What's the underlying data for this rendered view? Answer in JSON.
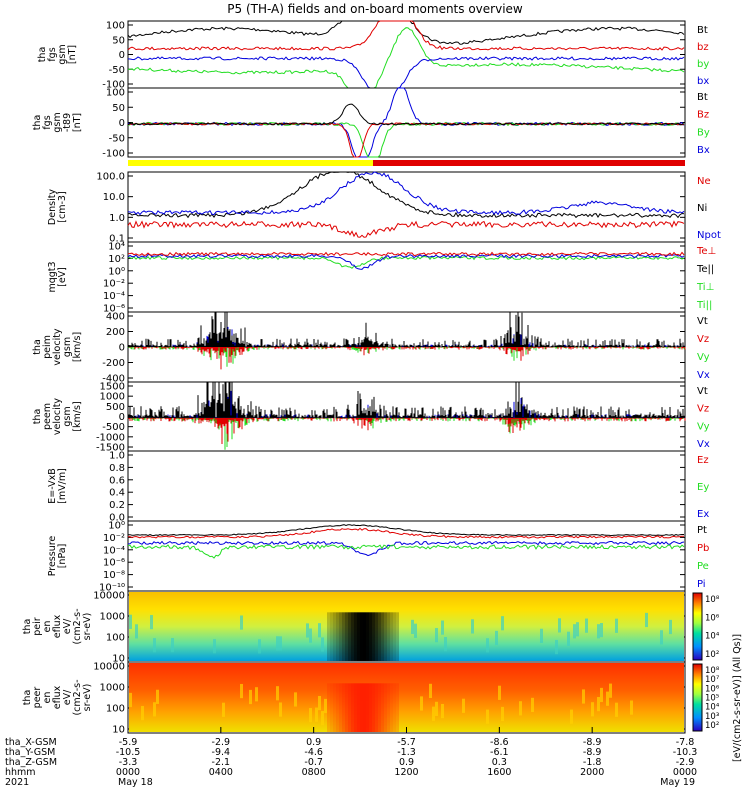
{
  "title": "P5 (TH-A) fields and on-board moments overview",
  "colors": {
    "black": "#000000",
    "red": "#e00000",
    "green": "#22dd22",
    "blue": "#0000dd",
    "yellow": "#ffff00"
  },
  "chart_data": [
    {
      "type": "line",
      "id": "fgs",
      "ylabel_lines": [
        "tha",
        "fgs",
        "gsm",
        "[nT]"
      ],
      "yticks": [
        "100",
        "50",
        "0",
        "-50",
        "-100"
      ],
      "ylim": [
        -100,
        100
      ],
      "series": [
        {
          "name": "Bt",
          "color": "black"
        },
        {
          "name": "bz",
          "color": "red"
        },
        {
          "name": "by",
          "color": "green"
        },
        {
          "name": "bx",
          "color": "blue"
        }
      ]
    },
    {
      "type": "line",
      "id": "fgs-t89",
      "ylabel_lines": [
        "tha",
        "fgs",
        "gsm",
        "-t89",
        "[nT]"
      ],
      "yticks": [
        "100",
        "50",
        "0",
        "-50",
        "-100"
      ],
      "ylim": [
        -125,
        100
      ],
      "series": [
        {
          "name": "Bt",
          "color": "black"
        },
        {
          "name": "Bz",
          "color": "red"
        },
        {
          "name": "By",
          "color": "green"
        },
        {
          "name": "Bx",
          "color": "blue"
        }
      ]
    },
    {
      "type": "line",
      "id": "density",
      "ylabel_lines": [
        "Density",
        "[cm-3]"
      ],
      "yticks": [
        "100.0",
        "10.0",
        "1.0",
        "0.1"
      ],
      "scale": "log",
      "series": [
        {
          "name": "Ne",
          "color": "red"
        },
        {
          "name": "Ni",
          "color": "black"
        },
        {
          "name": "Npot",
          "color": "blue"
        }
      ]
    },
    {
      "type": "line",
      "id": "temp",
      "ylabel_lines": [
        "mqgt3",
        "[eV]"
      ],
      "yticks": [
        "10⁴",
        "10²",
        "10⁰",
        "10⁻²",
        "10⁻⁴",
        "10⁻⁶"
      ],
      "scale": "log",
      "series": [
        {
          "name": "Te⊥",
          "color": "red"
        },
        {
          "name": "Te||",
          "color": "black"
        },
        {
          "name": "Ti⊥",
          "color": "green"
        },
        {
          "name": "Ti||",
          "color": "green"
        }
      ]
    },
    {
      "type": "line",
      "id": "peim",
      "ylabel_lines": [
        "tha",
        "peim",
        "velocity",
        "gsm",
        "[km/s]"
      ],
      "yticks": [
        "400",
        "200",
        "0",
        "-200",
        "-400"
      ],
      "ylim": [
        -400,
        400
      ],
      "series": [
        {
          "name": "Vt",
          "color": "black"
        },
        {
          "name": "Vz",
          "color": "red"
        },
        {
          "name": "Vy",
          "color": "green"
        },
        {
          "name": "Vx",
          "color": "blue"
        }
      ]
    },
    {
      "type": "line",
      "id": "peem",
      "ylabel_lines": [
        "tha",
        "peem",
        "velocity",
        "gsm",
        "[km/s]"
      ],
      "yticks": [
        "1500",
        "1000",
        "500",
        "0",
        "-500",
        "-1000",
        "-1500"
      ],
      "ylim": [
        -1500,
        1500
      ],
      "series": [
        {
          "name": "Vt",
          "color": "black"
        },
        {
          "name": "Vz",
          "color": "red"
        },
        {
          "name": "Vy",
          "color": "green"
        },
        {
          "name": "Vx",
          "color": "blue"
        }
      ]
    },
    {
      "type": "line",
      "id": "efield",
      "ylabel_lines": [
        "E=-VxB",
        "[mV/m]"
      ],
      "yticks": [
        "1.0",
        "0.8",
        "0.6",
        "0.4",
        "0.2",
        "0.0"
      ],
      "ylim": [
        0,
        1
      ],
      "series": [
        {
          "name": "Ez",
          "color": "red"
        },
        {
          "name": "Ey",
          "color": "green"
        },
        {
          "name": "Ex",
          "color": "blue"
        }
      ]
    },
    {
      "type": "line",
      "id": "pressure",
      "ylabel_lines": [
        "Pressure",
        "[nPa]"
      ],
      "yticks": [
        "10⁰",
        "10⁻²",
        "10⁻⁴",
        "10⁻⁶",
        "10⁻⁸",
        "10⁻¹⁰"
      ],
      "scale": "log",
      "series": [
        {
          "name": "Pt",
          "color": "black"
        },
        {
          "name": "Pb",
          "color": "red"
        },
        {
          "name": "Pe",
          "color": "green"
        },
        {
          "name": "Pi",
          "color": "blue"
        }
      ]
    },
    {
      "type": "heatmap",
      "id": "peir",
      "ylabel_lines": [
        "tha",
        "peir",
        "en",
        "eflux",
        "eV/",
        "(cm2-s-",
        "sr-eV)"
      ],
      "yticks": [
        "10000",
        "1000",
        "100",
        "10"
      ],
      "colorbar_ticks": [
        "10⁸",
        "10⁶",
        "10⁴",
        "10²"
      ]
    },
    {
      "type": "heatmap",
      "id": "peer",
      "ylabel_lines": [
        "tha",
        "peer",
        "en",
        "eflux",
        "eV/",
        "(cm2-s-",
        "sr-eV)"
      ],
      "yticks": [
        "10000",
        "1000",
        "100",
        "10"
      ],
      "colorbar_ticks": [
        "10⁸",
        "10⁷",
        "10⁶",
        "10⁵",
        "10⁴",
        "10³",
        "10²"
      ]
    }
  ],
  "colorbar_label": "[eV/(cm2-s-sr-eV)] (All Qs)]",
  "xaxis": {
    "row_labels": [
      "tha_X-GSM",
      "tha_Y-GSM",
      "tha_Z-GSM",
      "hhmm",
      "2021"
    ],
    "ticks": [
      {
        "x": "-5.9",
        "y": "-10.5",
        "z": "-3.3",
        "time": "0000",
        "date": "May 18"
      },
      {
        "x": "-2.9",
        "y": "-9.4",
        "z": "-2.1",
        "time": "0400",
        "date": ""
      },
      {
        "x": "0.9",
        "y": "-4.6",
        "z": "-0.7",
        "time": "0800",
        "date": ""
      },
      {
        "x": "-5.7",
        "y": "-1.3",
        "z": "0.9",
        "time": "1200",
        "date": ""
      },
      {
        "x": "-8.6",
        "y": "-6.1",
        "z": "0.3",
        "time": "1600",
        "date": ""
      },
      {
        "x": "-8.9",
        "y": "-8.9",
        "z": "-1.8",
        "time": "2000",
        "date": ""
      },
      {
        "x": "-7.8",
        "y": "-10.3",
        "z": "-2.9",
        "time": "0000",
        "date": "May 19"
      }
    ]
  }
}
